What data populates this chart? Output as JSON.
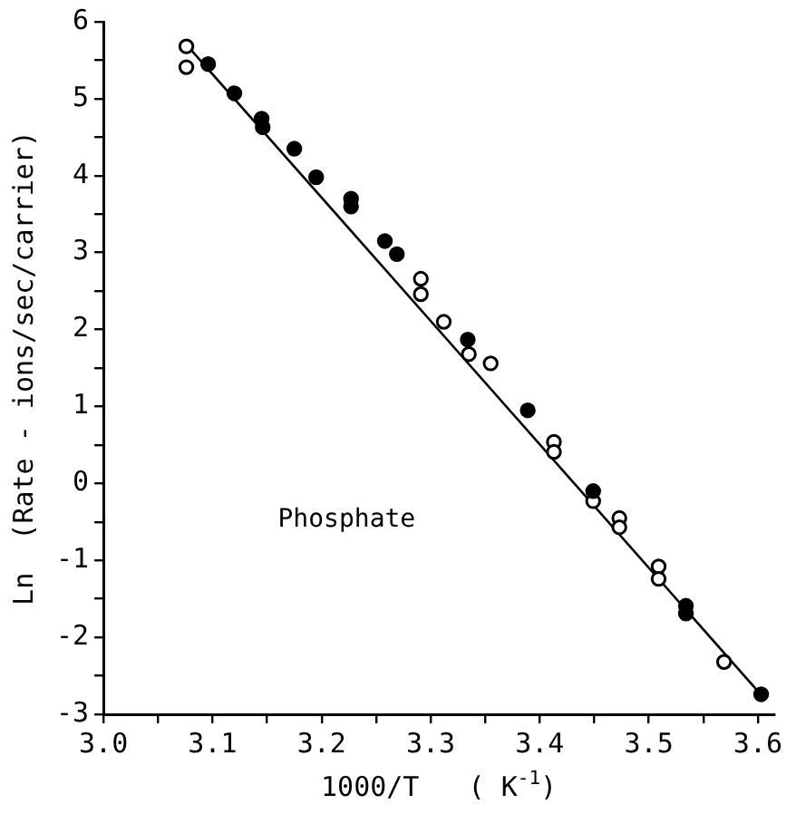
{
  "chart_data": {
    "type": "scatter",
    "xlabel": "1000/T   ( K$^{-1}$)",
    "ylabel": "Ln  (Rate - ions/sec/carrier)",
    "annotations": [
      "Phosphate"
    ],
    "xlim": [
      3.0,
      3.615
    ],
    "ylim": [
      -3,
      6
    ],
    "xticks": [
      {
        "value": 3.0,
        "label": "3.0"
      },
      {
        "value": 3.05,
        "label": null
      },
      {
        "value": 3.1,
        "label": "3.1"
      },
      {
        "value": 3.15,
        "label": null
      },
      {
        "value": 3.2,
        "label": "3.2"
      },
      {
        "value": 3.25,
        "label": null
      },
      {
        "value": 3.3,
        "label": "3.3"
      },
      {
        "value": 3.35,
        "label": null
      },
      {
        "value": 3.4,
        "label": "3.4"
      },
      {
        "value": 3.45,
        "label": null
      },
      {
        "value": 3.5,
        "label": "3.5"
      },
      {
        "value": 3.55,
        "label": null
      },
      {
        "value": 3.6,
        "label": "3.6"
      }
    ],
    "yticks": [
      -3,
      {
        "value": -2.5,
        "label": null
      },
      -2,
      {
        "value": -1.5,
        "label": null
      },
      -1,
      {
        "value": -0.5,
        "label": null
      },
      0,
      {
        "value": 0.5,
        "label": null
      },
      1,
      {
        "value": 1.5,
        "label": null
      },
      2,
      {
        "value": 2.5,
        "label": null
      },
      3,
      {
        "value": 3.5,
        "label": null
      },
      4,
      {
        "value": 4.5,
        "label": null
      },
      5,
      {
        "value": 5.5,
        "label": null
      },
      6
    ],
    "grid": false,
    "legend": false,
    "marker": "circle",
    "series": [
      {
        "color": "#000000",
        "x": [
          3.096,
          3.12,
          3.145,
          3.146,
          3.175,
          3.195,
          3.227,
          3.227,
          3.258,
          3.269,
          3.334,
          3.389,
          3.449,
          3.534,
          3.534,
          3.603
        ],
        "values": [
          5.45,
          5.07,
          4.74,
          4.63,
          4.35,
          3.98,
          3.7,
          3.6,
          3.15,
          2.98,
          1.87,
          0.95,
          -0.1,
          -1.59,
          -1.69,
          -2.74
        ]
      },
      {
        "color": "#000000",
        "x": [
          3.076,
          3.076,
          3.291,
          3.291,
          3.312,
          3.335,
          3.355,
          3.413,
          3.413,
          3.449,
          3.473,
          3.473,
          3.509,
          3.509,
          3.569
        ],
        "values": [
          5.68,
          5.41,
          2.66,
          2.46,
          2.1,
          1.68,
          1.56,
          0.54,
          0.41,
          -0.23,
          -0.45,
          -0.57,
          -1.08,
          -1.24,
          -2.32
        ]
      },
      {
        "type": "line",
        "color": "#000000",
        "marker": "none",
        "line_style": "solid",
        "x": [
          3.075,
          3.605
        ],
        "values": [
          5.72,
          -2.78
        ]
      }
    ]
  }
}
